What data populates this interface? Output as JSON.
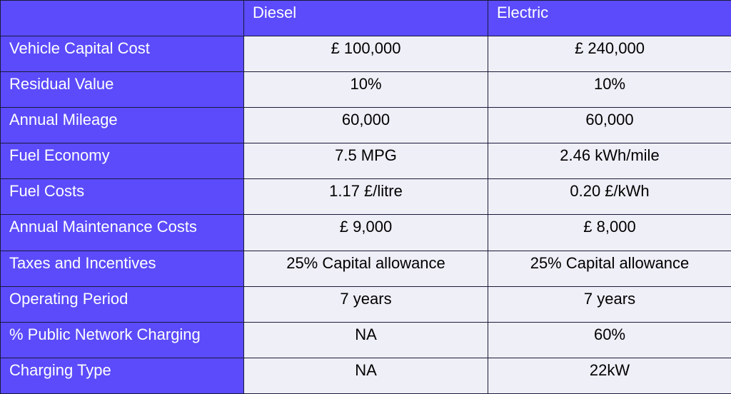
{
  "colors": {
    "header": "#5b4bfb",
    "cell": "#efeff8"
  },
  "table": {
    "headers": [
      "",
      "Diesel",
      "Electric"
    ],
    "rows": [
      [
        "Vehicle Capital Cost",
        "£ 100,000",
        "£ 240,000"
      ],
      [
        "Residual Value",
        "10%",
        "10%"
      ],
      [
        "Annual Mileage",
        "60,000",
        "60,000"
      ],
      [
        "Fuel Economy",
        "7.5 MPG",
        "2.46 kWh/mile"
      ],
      [
        "Fuel Costs",
        "1.17 £/litre",
        "0.20 £/kWh"
      ],
      [
        "Annual Maintenance Costs",
        "£ 9,000",
        "£ 8,000"
      ],
      [
        "Taxes and Incentives",
        "25% Capital allowance",
        "25% Capital allowance"
      ],
      [
        "Operating Period",
        "7 years",
        "7 years"
      ],
      [
        "% Public Network Charging",
        "NA",
        "60%"
      ],
      [
        "Charging Type",
        "NA",
        "22kW"
      ]
    ]
  }
}
